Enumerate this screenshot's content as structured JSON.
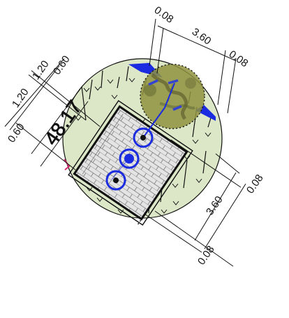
{
  "drawing": {
    "dimensions_top": [
      "0.08",
      "3.60",
      "0.08"
    ],
    "dimensions_bottom_right": [
      "0.08",
      "3.60",
      "0.08"
    ],
    "dimensions_left": [
      "0.60",
      "1.20",
      "1.20",
      "0.60"
    ],
    "plot_label": "48.17"
  },
  "colors": {
    "grass": "#dce7c8",
    "paving": "#e4e4e4",
    "tree_canopy": "#8f923f",
    "service_blue": "#1a2be0",
    "boundary_pink": "#d8286e",
    "linework": "#111111"
  }
}
